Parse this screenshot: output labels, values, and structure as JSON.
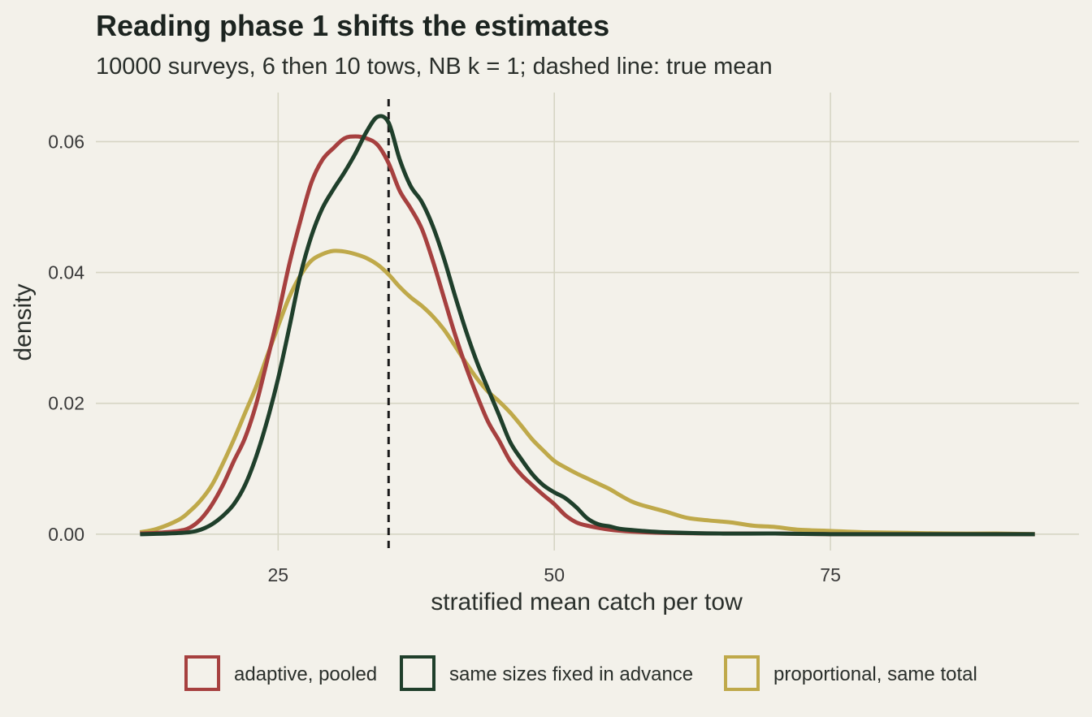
{
  "colors": {
    "background": "#f3f1ea",
    "grid": "#d6d5c4",
    "text": "#1c2420",
    "reference_line": "#1a1a1a"
  },
  "chart_data": {
    "type": "line",
    "title": "Reading phase 1 shifts the estimates",
    "subtitle": "10000 surveys, 6 then 10 tows, NB k = 1; dashed line: true mean",
    "xlabel": "stratified mean catch per tow",
    "ylabel": "density",
    "xlim": [
      8.5,
      97.5
    ],
    "ylim": [
      -0.0025,
      0.0675
    ],
    "x_ticks": [
      25,
      50,
      75
    ],
    "x_tick_labels": [
      "25",
      "50",
      "75"
    ],
    "y_ticks": [
      0,
      0.02,
      0.04,
      0.06
    ],
    "y_tick_labels": [
      "0.00",
      "0.02",
      "0.04",
      "0.06"
    ],
    "grid": true,
    "legend_position": "bottom",
    "reference_line": {
      "x": 35,
      "style": "dashed"
    },
    "series": [
      {
        "name": "adaptive, pooled",
        "color": "#a6403f",
        "x": [
          12.5,
          14,
          16,
          17,
          18,
          19,
          20,
          21,
          22,
          23,
          24,
          25,
          26,
          27,
          28,
          29,
          30,
          31,
          32,
          33,
          34,
          35,
          36,
          37,
          38,
          39,
          40,
          41,
          42,
          43,
          44,
          45,
          46,
          47,
          48,
          49,
          50,
          51,
          52,
          53,
          55,
          57,
          60,
          65,
          70,
          75,
          80,
          85,
          90,
          93.5
        ],
        "y": [
          0.0001,
          0.0002,
          0.0005,
          0.001,
          0.0023,
          0.0045,
          0.0075,
          0.0112,
          0.0147,
          0.0198,
          0.0265,
          0.0335,
          0.0412,
          0.0478,
          0.0537,
          0.0572,
          0.059,
          0.0605,
          0.0608,
          0.0605,
          0.0595,
          0.0567,
          0.0525,
          0.0498,
          0.0467,
          0.0418,
          0.0362,
          0.0306,
          0.0256,
          0.0212,
          0.0172,
          0.0143,
          0.0112,
          0.0091,
          0.0075,
          0.006,
          0.0046,
          0.0029,
          0.0018,
          0.0013,
          0.0007,
          0.0004,
          0.0002,
          0.0001,
          0.0001,
          0.0,
          0.0,
          0.0,
          0.0,
          0.0
        ]
      },
      {
        "name": "same sizes fixed in advance",
        "color": "#1f3f2b",
        "x": [
          12.5,
          15,
          17,
          18,
          19,
          20,
          21,
          22,
          23,
          24,
          25,
          26,
          27,
          28,
          29,
          30,
          31,
          32,
          33,
          34,
          35,
          36,
          37,
          38,
          39,
          40,
          41,
          42,
          43,
          44,
          45,
          46,
          47,
          48,
          49,
          50,
          51,
          52,
          53,
          54,
          55,
          56,
          58,
          60,
          65,
          70,
          75,
          80,
          85,
          90,
          93.5
        ],
        "y": [
          0.0,
          0.0001,
          0.0003,
          0.0007,
          0.0015,
          0.0028,
          0.0046,
          0.0075,
          0.0118,
          0.0173,
          0.0238,
          0.0315,
          0.0395,
          0.0455,
          0.0498,
          0.0527,
          0.0553,
          0.0582,
          0.0615,
          0.0638,
          0.0629,
          0.0573,
          0.0532,
          0.0508,
          0.0471,
          0.0422,
          0.0365,
          0.0311,
          0.0263,
          0.0222,
          0.0182,
          0.0141,
          0.0115,
          0.0092,
          0.0075,
          0.0064,
          0.0055,
          0.0041,
          0.0024,
          0.0015,
          0.0012,
          0.0008,
          0.0005,
          0.0003,
          0.0001,
          0.0001,
          0.0,
          0.0,
          0.0,
          0.0,
          0.0
        ]
      },
      {
        "name": "proportional, same total",
        "color": "#bfa94a",
        "x": [
          12.5,
          14,
          16,
          17,
          18,
          19,
          20,
          21,
          22,
          23,
          24,
          25,
          26,
          27,
          28,
          29,
          30,
          31,
          32,
          33,
          34,
          35,
          36,
          37,
          38,
          39,
          40,
          41,
          42,
          43,
          44,
          45,
          46,
          47,
          48,
          49,
          50,
          51,
          52,
          53,
          54,
          55,
          56,
          57,
          58,
          60,
          62,
          64,
          66,
          68,
          70,
          72,
          75,
          78,
          82,
          86,
          90,
          93.5
        ],
        "y": [
          0.0003,
          0.0008,
          0.0022,
          0.0035,
          0.0052,
          0.0075,
          0.0108,
          0.0145,
          0.0185,
          0.0225,
          0.0272,
          0.0318,
          0.0362,
          0.0395,
          0.0418,
          0.0428,
          0.0433,
          0.0432,
          0.0428,
          0.0422,
          0.0412,
          0.0397,
          0.0378,
          0.0362,
          0.0349,
          0.0333,
          0.0313,
          0.0288,
          0.0262,
          0.0238,
          0.0218,
          0.0203,
          0.0186,
          0.0166,
          0.0145,
          0.0128,
          0.0112,
          0.0102,
          0.0093,
          0.0085,
          0.0077,
          0.0069,
          0.0059,
          0.005,
          0.0044,
          0.0035,
          0.0025,
          0.0021,
          0.0018,
          0.0013,
          0.0011,
          0.0007,
          0.0005,
          0.0003,
          0.0002,
          0.0001,
          0.0001,
          0.0
        ]
      }
    ]
  }
}
